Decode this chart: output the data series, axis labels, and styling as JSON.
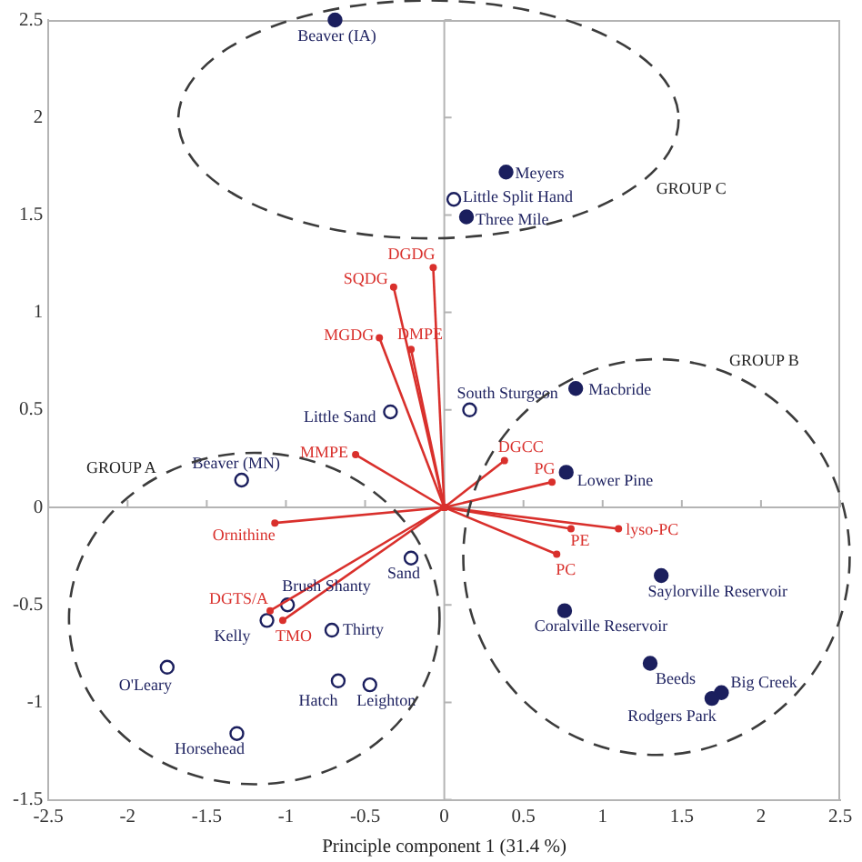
{
  "chart_data": {
    "type": "scatter",
    "xlabel": "Principle component 1 (31.4 %)",
    "xlim": [
      -2.5,
      2.5
    ],
    "xticks": [
      -2.5,
      -2,
      -1.5,
      -1,
      -0.5,
      0,
      0.5,
      1,
      1.5,
      2,
      2.5
    ],
    "ylim": [
      -1.5,
      2.5
    ],
    "yticks": [
      -1.5,
      -1,
      -0.5,
      0,
      0.5,
      1,
      1.5,
      2,
      2.5
    ],
    "grid": false,
    "legend": false,
    "ref_lines": [
      {
        "axis": "x",
        "value": 0,
        "color": "#b4b4b4"
      },
      {
        "axis": "y",
        "value": 0,
        "color": "#b4b4b4"
      }
    ],
    "series": [
      {
        "type": "line",
        "name": "DGDG",
        "color": "#d9302c",
        "marker": "circle",
        "x": [
          0,
          -0.07
        ],
        "values": [
          0,
          1.23
        ]
      },
      {
        "type": "line",
        "name": "SQDG",
        "color": "#d9302c",
        "marker": "circle",
        "x": [
          0,
          -0.32
        ],
        "values": [
          0,
          1.13
        ]
      },
      {
        "type": "line",
        "name": "MGDG",
        "color": "#d9302c",
        "marker": "circle",
        "x": [
          0,
          -0.41
        ],
        "values": [
          0,
          0.87
        ]
      },
      {
        "type": "line",
        "name": "DMPE",
        "color": "#d9302c",
        "marker": "circle",
        "x": [
          0,
          -0.21
        ],
        "values": [
          0,
          0.81
        ]
      },
      {
        "type": "line",
        "name": "MMPE",
        "color": "#d9302c",
        "marker": "circle",
        "x": [
          0,
          -0.56
        ],
        "values": [
          0,
          0.27
        ]
      },
      {
        "type": "line",
        "name": "Ornithine",
        "color": "#d9302c",
        "marker": "circle",
        "x": [
          0,
          -1.07
        ],
        "values": [
          0,
          -0.08
        ]
      },
      {
        "type": "line",
        "name": "DGTS/A",
        "color": "#d9302c",
        "marker": "circle",
        "x": [
          0,
          -1.1
        ],
        "values": [
          0,
          -0.53
        ]
      },
      {
        "type": "line",
        "name": "TMO",
        "color": "#d9302c",
        "marker": "circle",
        "x": [
          0,
          -1.02
        ],
        "values": [
          0,
          -0.58
        ]
      },
      {
        "type": "line",
        "name": "DGCC",
        "color": "#d9302c",
        "marker": "circle",
        "x": [
          0,
          0.38
        ],
        "values": [
          0,
          0.24
        ]
      },
      {
        "type": "line",
        "name": "PG",
        "color": "#d9302c",
        "marker": "circle",
        "x": [
          0,
          0.68
        ],
        "values": [
          0,
          0.13
        ]
      },
      {
        "type": "line",
        "name": "lyso-PC",
        "color": "#d9302c",
        "marker": "circle",
        "x": [
          0,
          1.1
        ],
        "values": [
          0,
          -0.11
        ]
      },
      {
        "type": "line",
        "name": "PE",
        "color": "#d9302c",
        "marker": "circle",
        "x": [
          0,
          0.8
        ],
        "values": [
          0,
          -0.11
        ]
      },
      {
        "type": "line",
        "name": "PC",
        "color": "#d9302c",
        "marker": "circle",
        "x": [
          0,
          0.71
        ],
        "values": [
          0,
          -0.24
        ]
      },
      {
        "type": "scatter",
        "color": "#1b1f5e",
        "marker": "circle",
        "x": [
          -0.69,
          0.39,
          0.14,
          0.83,
          0.77,
          1.37,
          0.76,
          1.3,
          1.75,
          1.69
        ],
        "values": [
          2.5,
          1.72,
          1.49,
          0.61,
          0.18,
          -0.35,
          -0.53,
          -0.8,
          -0.95,
          -0.98
        ]
      },
      {
        "type": "scatter",
        "color": "#1b1f5e",
        "marker": "circle",
        "x": [
          0.06,
          0.16,
          -0.34,
          -1.28,
          -0.21,
          -0.99,
          -1.12,
          -0.71,
          -1.75,
          -0.67,
          -0.47,
          -1.31
        ],
        "values": [
          1.58,
          0.5,
          0.49,
          0.14,
          -0.26,
          -0.5,
          -0.58,
          -0.63,
          -0.82,
          -0.89,
          -0.91,
          -1.16
        ]
      }
    ],
    "annotations": [
      {
        "text": "Beaver (IA)",
        "x": -0.69,
        "y": 2.5
      },
      {
        "text": "Meyers",
        "x": 0.39,
        "y": 1.72
      },
      {
        "text": "Little Split Hand",
        "x": 0.06,
        "y": 1.58
      },
      {
        "text": "Three Mile",
        "x": 0.14,
        "y": 1.49
      },
      {
        "text": "Macbride",
        "x": 0.83,
        "y": 0.61
      },
      {
        "text": "South Sturgeon",
        "x": 0.16,
        "y": 0.5
      },
      {
        "text": "Little Sand",
        "x": -0.34,
        "y": 0.49
      },
      {
        "text": "Beaver (MN)",
        "x": -1.28,
        "y": 0.14
      },
      {
        "text": "Sand",
        "x": -0.21,
        "y": -0.26
      },
      {
        "text": "Brush Shanty",
        "x": -0.99,
        "y": -0.5
      },
      {
        "text": "Kelly",
        "x": -1.12,
        "y": -0.58
      },
      {
        "text": "Thirty",
        "x": -0.71,
        "y": -0.63
      },
      {
        "text": "O'Leary",
        "x": -1.75,
        "y": -0.82
      },
      {
        "text": "Hatch",
        "x": -0.67,
        "y": -0.89
      },
      {
        "text": "Leighton",
        "x": -0.47,
        "y": -0.91
      },
      {
        "text": "Horsehead",
        "x": -1.31,
        "y": -1.16
      },
      {
        "text": "Lower Pine",
        "x": 0.77,
        "y": 0.18
      },
      {
        "text": "Saylorville Reservoir",
        "x": 1.37,
        "y": -0.35
      },
      {
        "text": "Coralville Reservoir",
        "x": 0.76,
        "y": -0.53
      },
      {
        "text": "Beeds",
        "x": 1.3,
        "y": -0.8
      },
      {
        "text": "Big Creek",
        "x": 1.75,
        "y": -0.95
      },
      {
        "text": "Rodgers Park",
        "x": 1.69,
        "y": -0.98
      },
      "GROUP A",
      "GROUP B",
      "GROUP C"
    ]
  }
}
